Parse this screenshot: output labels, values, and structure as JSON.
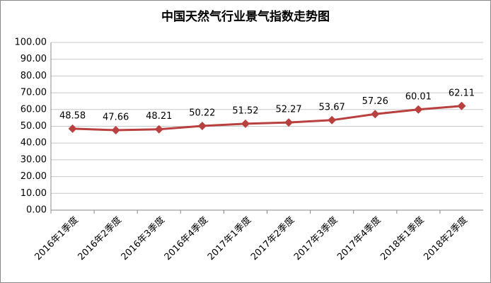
{
  "chart_data": {
    "type": "line",
    "title": "中国天然气行业景气指数走势图",
    "categories": [
      "2016年1季度",
      "2016年2季度",
      "2016年3季度",
      "2016年4季度",
      "2017年1季度",
      "2017年2季度",
      "2017年3季度",
      "2017年4季度",
      "2018年1季度",
      "2018年2季度"
    ],
    "values": [
      48.58,
      47.66,
      48.21,
      50.22,
      51.52,
      52.27,
      53.67,
      57.26,
      60.01,
      62.11
    ],
    "color": "#b8403e",
    "ylim": [
      0,
      100
    ],
    "yticks": [
      {
        "value": 0,
        "label": "0.00"
      },
      {
        "value": 10,
        "label": "10.00"
      },
      {
        "value": 20,
        "label": "20.00"
      },
      {
        "value": 30,
        "label": "30.00"
      },
      {
        "value": 40,
        "label": "40.00"
      },
      {
        "value": 50,
        "label": "50.00"
      },
      {
        "value": 60,
        "label": "60.00"
      },
      {
        "value": 70,
        "label": "70.00"
      },
      {
        "value": 80,
        "label": "80.00"
      },
      {
        "value": 90,
        "label": "90.00"
      },
      {
        "value": 100,
        "label": "100.00"
      }
    ],
    "grid": true
  }
}
